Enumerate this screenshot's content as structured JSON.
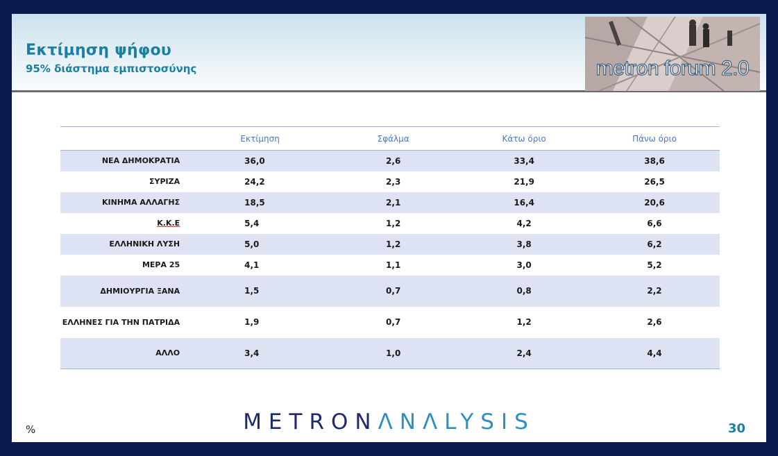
{
  "header": {
    "title": "Εκτίμηση ψήφου",
    "subtitle": "95% διάστημα εμπιστοσύνης"
  },
  "logo": {
    "text": "metron forum 2.0"
  },
  "table": {
    "columns": [
      "",
      "Εκτίμηση",
      "Σφάλμα",
      "Κάτω όριο",
      "Πάνω όριο"
    ],
    "rows": [
      {
        "party": "ΝΕΑ ΔΗΜΟΚΡΑΤΙΑ",
        "estimate": "36,0",
        "error": "2,6",
        "lower": "33,4",
        "upper": "38,6"
      },
      {
        "party": "ΣΥΡΙΖΑ",
        "estimate": "24,2",
        "error": "2,3",
        "lower": "21,9",
        "upper": "26,5"
      },
      {
        "party": "ΚΙΝΗΜΑ ΑΛΛΑΓΗΣ",
        "estimate": "18,5",
        "error": "2,1",
        "lower": "16,4",
        "upper": "20,6"
      },
      {
        "party": "Κ.Κ.Ε",
        "estimate": "5,4",
        "error": "1,2",
        "lower": "4,2",
        "upper": "6,6"
      },
      {
        "party": "ΕΛΛΗΝΙΚΗ ΛΥΣΗ",
        "estimate": "5,0",
        "error": "1,2",
        "lower": "3,8",
        "upper": "6,2"
      },
      {
        "party": "ΜΕΡΑ 25",
        "estimate": "4,1",
        "error": "1,1",
        "lower": "3,0",
        "upper": "5,2"
      },
      {
        "party": "ΔΗΜΙΟΥΡΓΙΑ ΞΑΝΑ",
        "estimate": "1,5",
        "error": "0,7",
        "lower": "0,8",
        "upper": "2,2"
      },
      {
        "party": "ΕΛΛΗΝΕΣ ΓΙΑ ΤΗΝ ΠΑΤΡΙΔΑ",
        "estimate": "1,9",
        "error": "0,7",
        "lower": "1,2",
        "upper": "2,6"
      },
      {
        "party": "ΑΛΛΟ",
        "estimate": "3,4",
        "error": "1,0",
        "lower": "2,4",
        "upper": "4,4"
      }
    ]
  },
  "footer": {
    "brand_main": "METRON",
    "brand_accent": "ΛNΛLYSIS",
    "unit": "%",
    "page_number": "30"
  }
}
